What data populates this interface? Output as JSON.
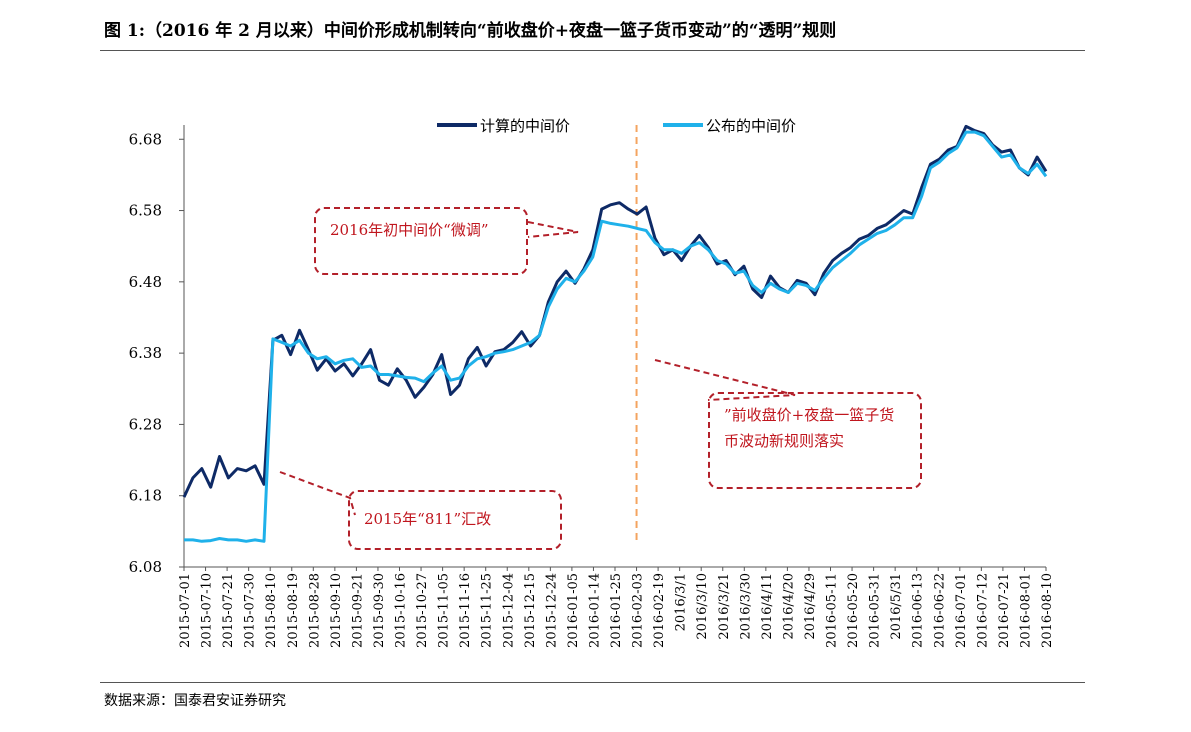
{
  "figure": {
    "title": "图 1:（2016 年 2 月以来）中间价形成机制转向“前收盘价+夜盘一篮子货币变动”的“透明”规则",
    "source": "数据来源：国泰君安证券研究"
  },
  "annotations": {
    "a1": "2016年初中间价“微调”",
    "a2": "”前收盘价+夜盘一篮子货币波动新规则落实",
    "a3": "2015年“811”汇改"
  },
  "colors": {
    "computed": "#0e2a66",
    "published": "#1fb1ea",
    "vline": "#f4a460",
    "callout": "#b3202a"
  },
  "chart_data": {
    "type": "line",
    "title": "",
    "xlabel": "",
    "ylabel": "",
    "ylim": [
      6.08,
      6.7
    ],
    "yticks": [
      "6.68",
      "6.58",
      "6.48",
      "6.38",
      "6.28",
      "6.18",
      "6.08"
    ],
    "legend_position": "top",
    "grid": false,
    "vertical_marker": "2016-02-03",
    "x_tick_labels": [
      "2015-07-01",
      "2015-07-10",
      "2015-07-21",
      "2015-07-30",
      "2015-08-10",
      "2015-08-19",
      "2015-08-28",
      "2015-09-10",
      "2015-09-21",
      "2015-09-30",
      "2015-10-16",
      "2015-10-27",
      "2015-11-05",
      "2015-11-16",
      "2015-11-25",
      "2015-12-04",
      "2015-12-15",
      "2015-12-24",
      "2016-01-05",
      "2016-01-14",
      "2016-01-25",
      "2016-02-03",
      "2016-02-19",
      "2016/3/1",
      "2016/3/10",
      "2016/3/21",
      "2016/3/30",
      "2016/4/11",
      "2016/4/20",
      "2016/4/29",
      "2016-05-11",
      "2016-05-20",
      "2016-05-31",
      "2016/5/31",
      "2016-06-13",
      "2016-06-22",
      "2016-07-01",
      "2016-07-12",
      "2016-07-21",
      "2016-08-01",
      "2016-08-10"
    ],
    "series": [
      {
        "name": "计算的中间价",
        "values": [
          6.178,
          6.205,
          6.218,
          6.192,
          6.235,
          6.205,
          6.218,
          6.215,
          6.222,
          6.196,
          6.398,
          6.405,
          6.378,
          6.412,
          6.385,
          6.356,
          6.372,
          6.355,
          6.365,
          6.348,
          6.365,
          6.385,
          6.342,
          6.335,
          6.358,
          6.342,
          6.318,
          6.332,
          6.35,
          6.378,
          6.322,
          6.335,
          6.372,
          6.388,
          6.362,
          6.382,
          6.385,
          6.395,
          6.41,
          6.39,
          6.405,
          6.452,
          6.48,
          6.495,
          6.478,
          6.498,
          6.525,
          6.582,
          6.588,
          6.591,
          6.582,
          6.575,
          6.585,
          6.541,
          6.518,
          6.525,
          6.51,
          6.53,
          6.545,
          6.528,
          6.505,
          6.51,
          6.49,
          6.502,
          6.47,
          6.458,
          6.488,
          6.472,
          6.465,
          6.482,
          6.478,
          6.462,
          6.492,
          6.51,
          6.52,
          6.528,
          6.54,
          6.545,
          6.555,
          6.56,
          6.57,
          6.58,
          6.575,
          6.612,
          6.645,
          6.652,
          6.665,
          6.67,
          6.698,
          6.692,
          6.688,
          6.672,
          6.662,
          6.665,
          6.64,
          6.63,
          6.655,
          6.635
        ]
      },
      {
        "name": "公布的中间价",
        "values": [
          6.118,
          6.118,
          6.116,
          6.117,
          6.12,
          6.118,
          6.118,
          6.116,
          6.118,
          6.116,
          6.4,
          6.395,
          6.39,
          6.398,
          6.38,
          6.372,
          6.375,
          6.365,
          6.37,
          6.372,
          6.36,
          6.362,
          6.35,
          6.35,
          6.348,
          6.346,
          6.345,
          6.34,
          6.352,
          6.362,
          6.342,
          6.345,
          6.362,
          6.372,
          6.375,
          6.38,
          6.382,
          6.385,
          6.39,
          6.395,
          6.405,
          6.445,
          6.47,
          6.485,
          6.48,
          6.495,
          6.515,
          6.565,
          6.562,
          6.56,
          6.558,
          6.555,
          6.552,
          6.535,
          6.525,
          6.525,
          6.52,
          6.53,
          6.535,
          6.525,
          6.51,
          6.505,
          6.492,
          6.495,
          6.475,
          6.465,
          6.478,
          6.47,
          6.465,
          6.478,
          6.475,
          6.468,
          6.485,
          6.5,
          6.51,
          6.52,
          6.532,
          6.54,
          6.548,
          6.552,
          6.56,
          6.57,
          6.57,
          6.6,
          6.64,
          6.648,
          6.66,
          6.668,
          6.69,
          6.69,
          6.685,
          6.67,
          6.655,
          6.658,
          6.64,
          6.632,
          6.645,
          6.628
        ]
      }
    ]
  }
}
